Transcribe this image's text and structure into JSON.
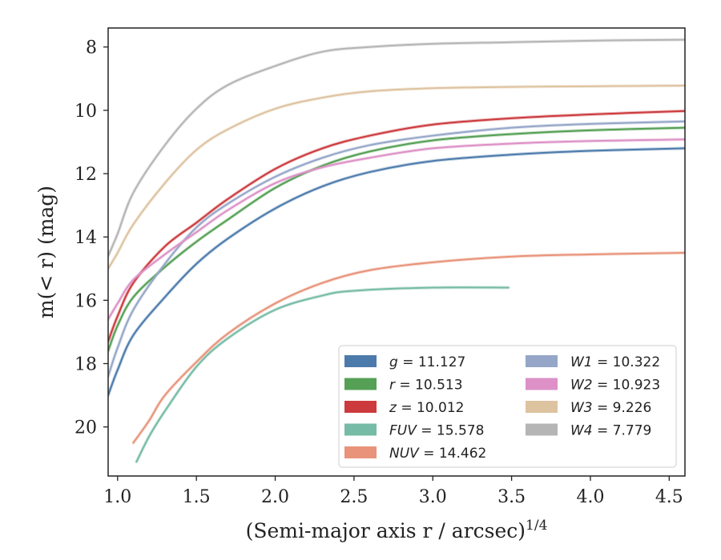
{
  "chart_data": {
    "type": "line",
    "xlabel": "(Semi-major axis r / arcsec)",
    "xlabel_exponent": "1/4",
    "ylabel": "m(< r) (mag)",
    "xlim": [
      0.94,
      4.6
    ],
    "ylim": [
      21.55,
      7.4
    ],
    "y_inverted": true,
    "xticks": [
      1.0,
      1.5,
      2.0,
      2.5,
      3.0,
      3.5,
      4.0,
      4.5
    ],
    "yticks": [
      8,
      10,
      12,
      14,
      16,
      18,
      20
    ],
    "xtick_labels": [
      "1.0",
      "1.5",
      "2.0",
      "2.5",
      "3.0",
      "3.5",
      "4.0",
      "4.5"
    ],
    "ytick_labels": [
      "8",
      "10",
      "12",
      "14",
      "16",
      "18",
      "20"
    ],
    "grid": false,
    "legend_position": "lower-right",
    "legend_columns": 2,
    "series": [
      {
        "name": "g",
        "legend_value": "11.127",
        "color": "#4c7bab",
        "x": [
          0.94,
          1.0,
          1.1,
          1.3,
          1.5,
          1.7,
          2.0,
          2.3,
          2.6,
          3.0,
          3.5,
          4.0,
          4.6
        ],
        "y": [
          19.0,
          18.2,
          17.1,
          15.9,
          14.85,
          14.05,
          13.1,
          12.4,
          11.95,
          11.6,
          11.4,
          11.28,
          11.2
        ]
      },
      {
        "name": "r",
        "legend_value": "10.513",
        "color": "#55a055",
        "x": [
          0.94,
          1.0,
          1.1,
          1.3,
          1.5,
          1.7,
          2.0,
          2.3,
          2.6,
          3.0,
          3.5,
          4.0,
          4.6
        ],
        "y": [
          17.6,
          16.8,
          15.9,
          14.95,
          14.15,
          13.45,
          12.45,
          11.75,
          11.3,
          10.95,
          10.75,
          10.63,
          10.55
        ]
      },
      {
        "name": "z",
        "legend_value": "10.012",
        "color": "#cc3a3d",
        "x": [
          0.94,
          1.0,
          1.1,
          1.3,
          1.5,
          1.7,
          2.0,
          2.3,
          2.6,
          3.0,
          3.5,
          4.0,
          4.6
        ],
        "y": [
          17.3,
          16.5,
          15.45,
          14.3,
          13.55,
          12.8,
          11.85,
          11.2,
          10.8,
          10.45,
          10.25,
          10.13,
          10.02
        ]
      },
      {
        "name": "FUV",
        "legend_value": "15.578",
        "color": "#76bba5",
        "x": [
          1.12,
          1.2,
          1.3,
          1.5,
          1.7,
          2.0,
          2.3,
          2.5,
          3.0,
          3.48
        ],
        "y": [
          21.1,
          20.3,
          19.5,
          18.1,
          17.2,
          16.3,
          15.85,
          15.7,
          15.6,
          15.6
        ]
      },
      {
        "name": "NUV",
        "legend_value": "14.462",
        "color": "#e8937a",
        "x": [
          1.1,
          1.2,
          1.3,
          1.5,
          1.7,
          2.0,
          2.3,
          2.6,
          3.0,
          3.5,
          4.0,
          4.6
        ],
        "y": [
          20.5,
          19.8,
          19.0,
          17.95,
          17.05,
          16.1,
          15.45,
          15.05,
          14.8,
          14.62,
          14.55,
          14.5
        ]
      },
      {
        "name": "W1",
        "legend_value": "10.322",
        "color": "#95a6c8",
        "x": [
          0.94,
          1.0,
          1.1,
          1.3,
          1.5,
          1.7,
          2.0,
          2.3,
          2.6,
          3.0,
          3.5,
          4.0,
          4.6
        ],
        "y": [
          18.4,
          17.5,
          16.3,
          14.85,
          13.7,
          12.95,
          12.1,
          11.5,
          11.1,
          10.8,
          10.55,
          10.43,
          10.35
        ]
      },
      {
        "name": "W2",
        "legend_value": "10.923",
        "color": "#dd91c7",
        "x": [
          0.94,
          1.0,
          1.1,
          1.3,
          1.5,
          1.7,
          2.0,
          2.3,
          2.6,
          3.0,
          3.5,
          4.0,
          4.6
        ],
        "y": [
          16.6,
          16.1,
          15.35,
          14.55,
          13.85,
          13.15,
          12.3,
          11.8,
          11.5,
          11.2,
          11.05,
          10.97,
          10.92
        ]
      },
      {
        "name": "W3",
        "legend_value": "9.226",
        "color": "#dec3a0",
        "x": [
          0.94,
          1.0,
          1.1,
          1.3,
          1.5,
          1.7,
          2.0,
          2.3,
          2.6,
          3.0,
          3.5,
          4.0,
          4.6
        ],
        "y": [
          15.0,
          14.5,
          13.6,
          12.3,
          11.25,
          10.6,
          9.95,
          9.6,
          9.4,
          9.3,
          9.26,
          9.24,
          9.22
        ]
      },
      {
        "name": "W4",
        "legend_value": "7.779",
        "color": "#b5b5b5",
        "x": [
          0.94,
          1.0,
          1.1,
          1.3,
          1.5,
          1.7,
          2.0,
          2.3,
          2.6,
          3.0,
          3.5,
          4.0,
          4.6
        ],
        "y": [
          14.6,
          13.9,
          12.6,
          11.1,
          9.95,
          9.2,
          8.6,
          8.15,
          8.0,
          7.9,
          7.85,
          7.8,
          7.77
        ]
      }
    ]
  }
}
